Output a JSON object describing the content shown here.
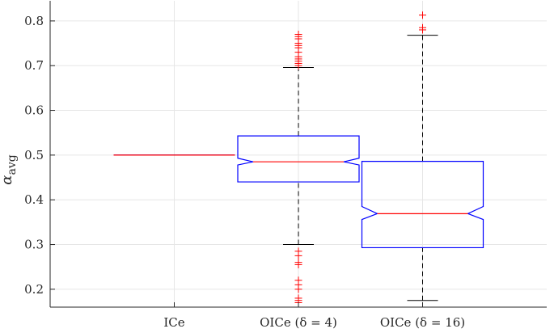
{
  "chart_data": {
    "type": "box",
    "categories": [
      "ICe",
      "OICe (δ = 4)",
      "OICe (δ = 16)"
    ],
    "ylabel": "α",
    "ylabel_subscript": "avg",
    "ylim": [
      0.16,
      0.845
    ],
    "yticks": [
      0.2,
      0.3,
      0.4,
      0.5,
      0.6,
      0.7,
      0.8
    ],
    "grid": true,
    "notched": true,
    "colors": {
      "box": "#0000ff",
      "median": "#ff0000",
      "whisker": "#000000",
      "outlier": "#ff0000",
      "grid": "#e6e6e6",
      "axis": "#262626"
    },
    "boxes": [
      {
        "category": "ICe",
        "q1": 0.5,
        "median": 0.5,
        "q3": 0.5,
        "whisker_low": 0.5,
        "whisker_high": 0.5,
        "notch_low": 0.5,
        "notch_high": 0.5,
        "outliers": []
      },
      {
        "category": "OICe (δ = 4)",
        "q1": 0.44,
        "median": 0.485,
        "q3": 0.543,
        "whisker_low": 0.3,
        "whisker_high": 0.696,
        "notch_low": 0.478,
        "notch_high": 0.493,
        "outliers": [
          0.7,
          0.705,
          0.71,
          0.715,
          0.72,
          0.73,
          0.74,
          0.745,
          0.75,
          0.76,
          0.765,
          0.77,
          0.285,
          0.275,
          0.26,
          0.255,
          0.22,
          0.21,
          0.2,
          0.18,
          0.175,
          0.17
        ]
      },
      {
        "category": "OICe (δ = 16)",
        "q1": 0.293,
        "median": 0.369,
        "q3": 0.486,
        "whisker_low": 0.175,
        "whisker_high": 0.768,
        "notch_low": 0.356,
        "notch_high": 0.385,
        "outliers": [
          0.78,
          0.785,
          0.813
        ]
      }
    ]
  }
}
